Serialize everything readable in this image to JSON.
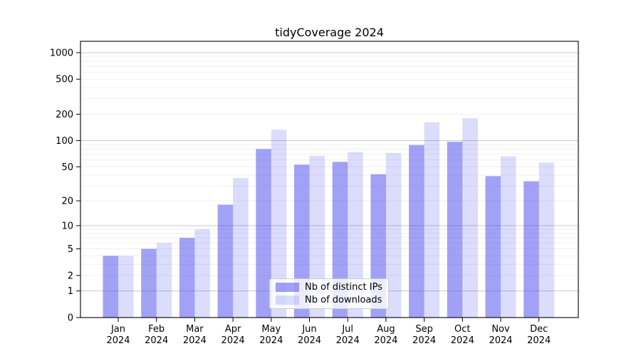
{
  "title": "tidyCoverage 2024",
  "chart_data": {
    "type": "bar",
    "title": "tidyCoverage 2024",
    "categories": [
      "Jan",
      "Feb",
      "Mar",
      "Apr",
      "May",
      "Jun",
      "Jul",
      "Aug",
      "Sep",
      "Oct",
      "Nov",
      "Dec"
    ],
    "year_label": "2024",
    "series": [
      {
        "name": "Nb of distinct IPs",
        "color": "#4444ee",
        "alpha": 0.5,
        "values": [
          4,
          5,
          7,
          18,
          80,
          53,
          57,
          41,
          89,
          97,
          39,
          34
        ]
      },
      {
        "name": "Nb of downloads",
        "color": "#4444ee",
        "alpha": 0.19,
        "values": [
          4,
          6,
          9,
          37,
          133,
          67,
          74,
          72,
          162,
          180,
          66,
          56
        ]
      }
    ],
    "yscale": "log1p",
    "yticks": [
      0,
      1,
      2,
      5,
      10,
      20,
      50,
      100,
      200,
      500,
      1000
    ],
    "ylim": [
      0,
      1350
    ],
    "grid": true,
    "gridline_major_color": "#c9c9c9",
    "gridline_minor_color": "#efefef",
    "legend_position": "lower-center",
    "xlabel": "",
    "ylabel": ""
  }
}
